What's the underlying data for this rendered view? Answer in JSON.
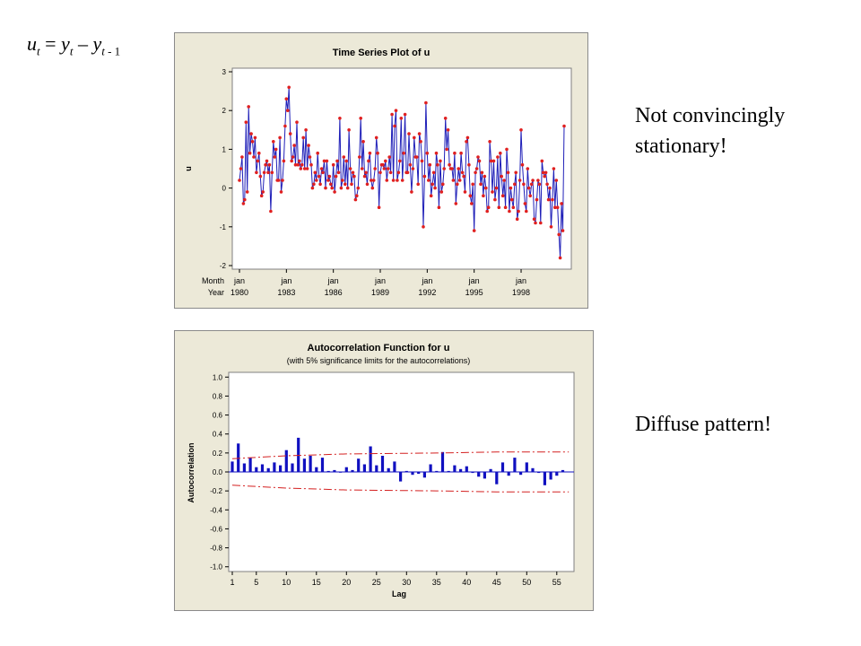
{
  "formula": {
    "u": "u",
    "t": "t",
    "eq": " = ",
    "y": "y",
    "minus": " – ",
    "t1": "t",
    "lag": " - 1"
  },
  "notes": {
    "top": [
      "Not convincingly",
      "stationary!"
    ],
    "bottom": "Diffuse pattern!"
  },
  "colors": {
    "series": "#1f1fb8",
    "marker": "#e02020",
    "limit": "#d42020",
    "bar": "#1010c0",
    "panel": "#ece9d8"
  },
  "chart_data": [
    {
      "type": "line",
      "title": "Time Series Plot of u",
      "ylabel": "u",
      "ylim": [
        -2,
        3
      ],
      "yticks": [
        -2,
        -1,
        0,
        1,
        2,
        3
      ],
      "xaxis": {
        "row_labels": [
          "Month",
          "Year"
        ],
        "months": [
          "jan",
          "jan",
          "jan",
          "jan",
          "jan",
          "jan",
          "jan"
        ],
        "years": [
          "1980",
          "1983",
          "1986",
          "1989",
          "1992",
          "1995",
          "1998"
        ]
      },
      "series": [
        {
          "values": [
            0.2,
            0.5,
            0.8,
            -0.4,
            -0.3,
            1.7,
            -0.1,
            2.1,
            0.9,
            1.4,
            1.2,
            0.8,
            1.3,
            0.4,
            0.7,
            0.9,
            0.3,
            -0.2,
            -0.1,
            0.4,
            0.6,
            0.7,
            0.4,
            0.6,
            -0.6,
            0.4,
            1.2,
            0.8,
            1.0,
            0.2,
            0.2,
            1.3,
            -0.1,
            0.2,
            0.7,
            1.6,
            2.3,
            2.0,
            2.6,
            1.4,
            0.7,
            0.8,
            1.1,
            0.6,
            1.7,
            0.6,
            0.7,
            0.5,
            0.6,
            1.3,
            0.5,
            1.5,
            0.5,
            1.1,
            0.8,
            0.6,
            0.0,
            0.1,
            0.4,
            0.2,
            0.9,
            0.3,
            0.1,
            0.5,
            0.4,
            0.7,
            0.0,
            0.7,
            0.2,
            0.3,
            0.1,
            0.0,
            0.6,
            -0.1,
            0.3,
            0.7,
            0.4,
            1.8,
            0.0,
            0.2,
            0.8,
            0.1,
            0.7,
            0.0,
            1.5,
            0.5,
            0.1,
            0.4,
            0.3,
            -0.3,
            -0.2,
            0.0,
            0.8,
            1.8,
            0.5,
            1.2,
            0.3,
            0.4,
            0.1,
            0.7,
            0.9,
            0.2,
            0.0,
            0.2,
            0.5,
            1.3,
            0.9,
            -0.5,
            0.4,
            0.6,
            0.6,
            0.5,
            0.7,
            0.2,
            0.5,
            0.8,
            0.4,
            1.9,
            0.2,
            1.6,
            2.0,
            0.2,
            0.4,
            0.7,
            1.8,
            0.2,
            0.9,
            1.9,
            0.4,
            0.4,
            1.4,
            0.6,
            -0.1,
            0.5,
            1.3,
            0.8,
            0.8,
            0.1,
            1.4,
            1.2,
            0.7,
            -1.0,
            0.3,
            2.2,
            0.9,
            0.2,
            0.6,
            -0.2,
            0.1,
            0.4,
            0.0,
            0.9,
            0.6,
            -0.5,
            0.7,
            -0.1,
            0.1,
            0.5,
            1.8,
            1.0,
            1.5,
            0.6,
            0.5,
            0.5,
            0.2,
            0.9,
            -0.4,
            0.1,
            0.5,
            0.2,
            0.9,
            0.4,
            0.3,
            -0.1,
            1.2,
            1.3,
            0.6,
            -0.2,
            -0.4,
            0.1,
            -1.1,
            0.4,
            0.5,
            0.8,
            0.7,
            0.1,
            0.4,
            -0.2,
            0.3,
            0.0,
            -0.6,
            -0.5,
            1.2,
            0.7,
            -0.1,
            0.7,
            -0.3,
            0.0,
            0.8,
            -0.5,
            0.9,
            0.3,
            -0.2,
            0.2,
            -0.5,
            1.0,
            0.4,
            -0.6,
            0.0,
            -0.3,
            -0.5,
            0.1,
            0.4,
            -0.8,
            -0.6,
            0.2,
            1.5,
            0.6,
            0.1,
            -0.4,
            -0.6,
            0.5,
            0.0,
            -0.2,
            0.1,
            0.2,
            -0.8,
            -0.9,
            -0.3,
            0.2,
            0.1,
            -0.9,
            0.7,
            0.4,
            0.3,
            0.4,
            0.1,
            -0.3,
            0.0,
            -1.0,
            -0.3,
            0.5,
            -0.5,
            0.2,
            -0.5,
            -1.2,
            -1.8,
            -0.4,
            -1.1,
            1.6
          ]
        }
      ]
    },
    {
      "type": "bar",
      "title": "Autocorrelation Function for u",
      "subtitle": "(with 5% significance limits for the autocorrelations)",
      "xlabel": "Lag",
      "ylabel": "Autocorrelation",
      "ylim": [
        -1.0,
        1.0
      ],
      "yticks": [
        "-1.0",
        "-0.8",
        "-0.6",
        "-0.4",
        "-0.2",
        "0.0",
        "0.2",
        "0.4",
        "0.6",
        "0.8",
        "1.0"
      ],
      "xticks": [
        1,
        5,
        10,
        15,
        20,
        25,
        30,
        35,
        40,
        45,
        50,
        55
      ],
      "values": [
        0.11,
        0.3,
        0.09,
        0.15,
        0.05,
        0.08,
        0.04,
        0.1,
        0.07,
        0.23,
        0.09,
        0.36,
        0.14,
        0.17,
        0.05,
        0.15,
        0.01,
        0.02,
        0.0,
        0.05,
        0.02,
        0.14,
        0.08,
        0.27,
        0.07,
        0.17,
        0.04,
        0.11,
        -0.1,
        0.01,
        -0.03,
        -0.02,
        -0.06,
        0.08,
        0.01,
        0.21,
        0.01,
        0.07,
        0.03,
        0.06,
        -0.01,
        -0.05,
        -0.07,
        0.03,
        -0.13,
        0.1,
        -0.04,
        0.15,
        -0.03,
        0.1,
        0.04,
        -0.01,
        -0.14,
        -0.08,
        -0.04,
        0.02
      ],
      "limits_upper": [
        [
          1,
          0.14
        ],
        [
          10,
          0.17
        ],
        [
          20,
          0.19
        ],
        [
          35,
          0.2
        ],
        [
          45,
          0.21
        ],
        [
          57,
          0.21
        ]
      ],
      "limits_lower": [
        [
          1,
          -0.14
        ],
        [
          10,
          -0.17
        ],
        [
          20,
          -0.19
        ],
        [
          35,
          -0.2
        ],
        [
          45,
          -0.21
        ],
        [
          57,
          -0.21
        ]
      ]
    }
  ]
}
